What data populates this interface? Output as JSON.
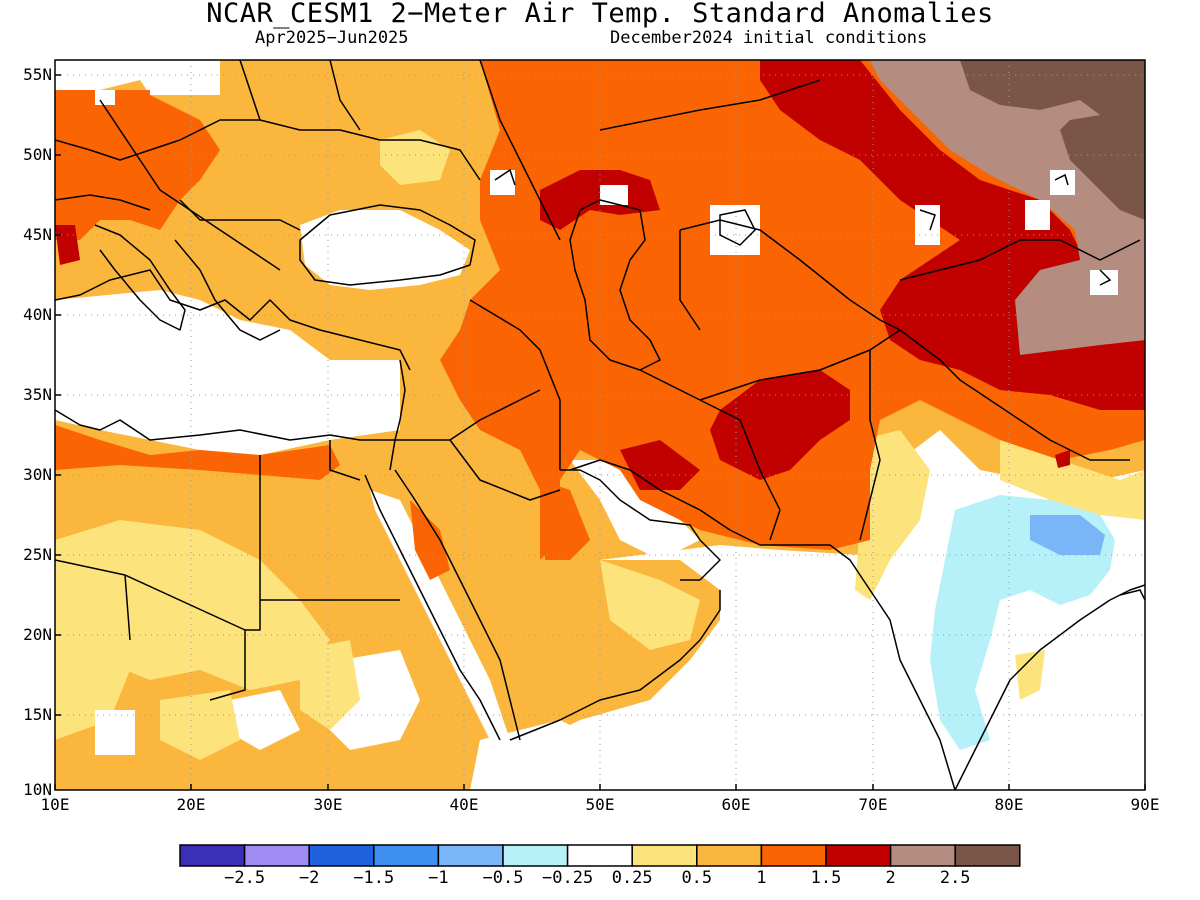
{
  "title": "NCAR_CESM1 2−Meter Air Temp. Standard Anomalies",
  "subtitle_left": "Apr2025−Jun2025",
  "subtitle_right": "December2024 initial conditions",
  "lat_labels": [
    "55N",
    "50N",
    "45N",
    "40N",
    "35N",
    "30N",
    "25N",
    "20N",
    "15N",
    "10N"
  ],
  "lon_labels": [
    "10E",
    "20E",
    "30E",
    "40E",
    "50E",
    "60E",
    "70E",
    "80E",
    "90E"
  ],
  "colorbar": {
    "colors": [
      "#3a2fb6",
      "#9f8cf2",
      "#1f62e0",
      "#3e8ff0",
      "#7ab6f7",
      "#b6f0f8",
      "#ffffff",
      "#fde37c",
      "#fbb63d",
      "#fb6403",
      "#c10000",
      "#b48c80",
      "#7a5648"
    ],
    "labels": [
      "−2.5",
      "−2",
      "−1.5",
      "−1",
      "−0.5",
      "−0.25",
      "0.25",
      "0.5",
      "1",
      "1.5",
      "2",
      "2.5"
    ]
  },
  "colors": {
    "neutral": "#ffffff",
    "warm_05": "#fde37c",
    "warm_1": "#fbb63d",
    "warm_15": "#fb6403",
    "warm_2": "#c10000",
    "warm_25": "#b48c80",
    "warm_3": "#7a5648",
    "cool_025": "#b6f0f8",
    "cool_05": "#7ab6f7"
  }
}
